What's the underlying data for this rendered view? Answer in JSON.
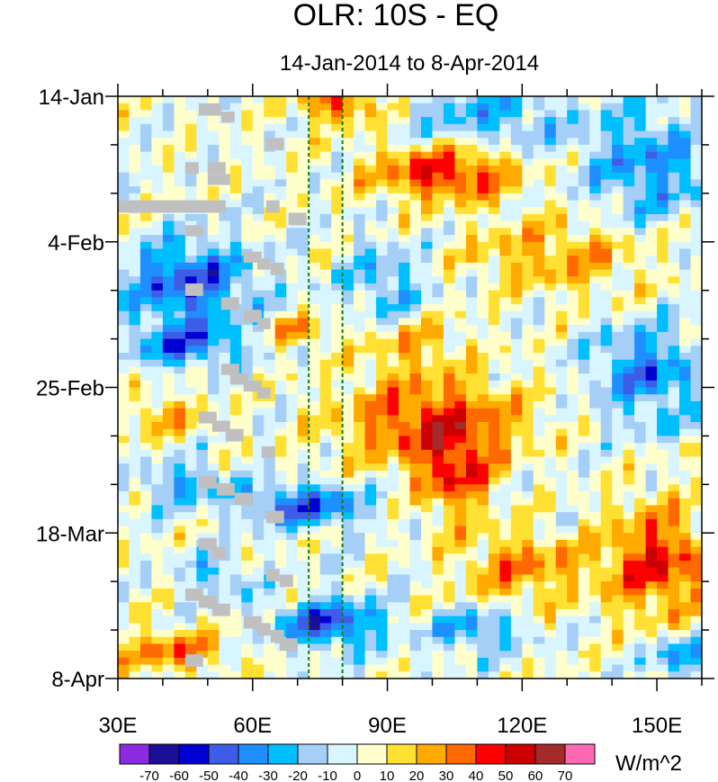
{
  "chart_data": {
    "type": "heatmap",
    "title": "OLR: 10S - EQ",
    "subtitle": "14-Jan-2014 to 8-Apr-2014",
    "xlabel": "",
    "ylabel": "",
    "x_range": [
      30,
      160
    ],
    "y_range_days": [
      0,
      84
    ],
    "x_tick_values": [
      30,
      60,
      90,
      120,
      150
    ],
    "x_tick_labels": [
      "30E",
      "60E",
      "90E",
      "120E",
      "150E"
    ],
    "y_tick_values": [
      0,
      21,
      42,
      63,
      84
    ],
    "y_tick_labels": [
      "14-Jan",
      "4-Feb",
      "25-Feb",
      "18-Mar",
      "8-Apr"
    ],
    "reference_lines_lon": [
      72.5,
      80
    ],
    "missing_color": "#c0c0c0",
    "colorbar": {
      "levels": [
        -70,
        -60,
        -50,
        -40,
        -30,
        -20,
        -10,
        0,
        10,
        20,
        30,
        40,
        50,
        60,
        70
      ],
      "level_labels": [
        "-70",
        "-60",
        "-50",
        "-40",
        "-30",
        "-20",
        "-10",
        "0",
        "10",
        "20",
        "30",
        "40",
        "50",
        "60",
        "70"
      ],
      "colors": [
        "#8a2be2",
        "#1a0f96",
        "#0000d2",
        "#3d5de6",
        "#1e8fff",
        "#00bfff",
        "#a6cff7",
        "#d9f5ff",
        "#ffffcc",
        "#ffe033",
        "#ffaa00",
        "#ff6a00",
        "#ff0000",
        "#cc0000",
        "#a52a2a",
        "#ff69b4"
      ],
      "units": "W/m^2"
    }
  }
}
